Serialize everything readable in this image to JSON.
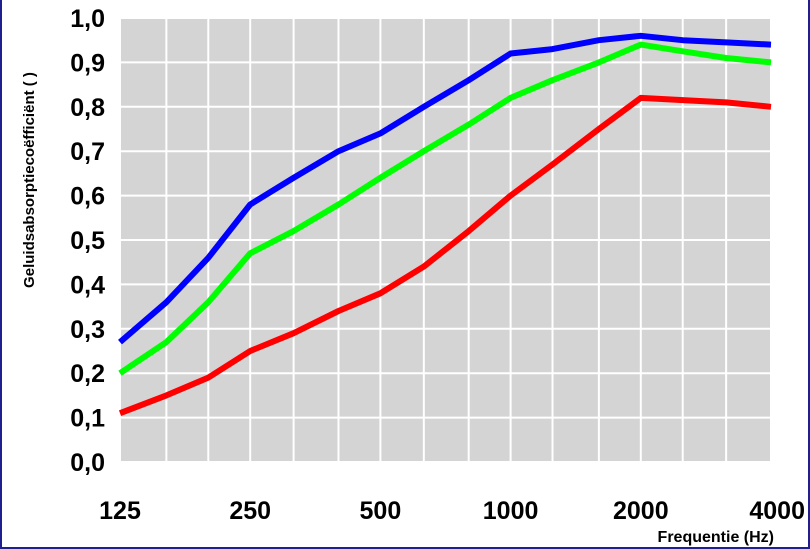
{
  "chart_data": {
    "type": "line",
    "title": "",
    "xlabel": "Frequentie (Hz)",
    "ylabel": "Geluidsabsorptiecoëfficiënt ( )",
    "x": [
      125,
      160,
      200,
      250,
      315,
      400,
      500,
      630,
      800,
      1000,
      1250,
      1600,
      2000,
      2500,
      3150,
      4000
    ],
    "x_tick_values": [
      125,
      250,
      500,
      1000,
      2000,
      4000
    ],
    "x_tick_labels": [
      "125",
      "250",
      "500",
      "1000",
      "2000",
      "4000"
    ],
    "xscale": "log",
    "xlim": [
      125,
      4000
    ],
    "ylim": [
      0,
      1.0
    ],
    "y_tick_values": [
      0,
      0.1,
      0.2,
      0.3,
      0.4,
      0.5,
      0.6,
      0.7,
      0.8,
      0.9,
      1.0
    ],
    "y_tick_labels": [
      "0,0",
      "0,1",
      "0,2",
      "0,3",
      "0,4",
      "0,5",
      "0,6",
      "0,7",
      "0,8",
      "0,9",
      "1,0"
    ],
    "grid": true,
    "plot_background": "#d4d4d4",
    "grid_color": "#ffffff",
    "series": [
      {
        "color": "#0000ff",
        "values": [
          0.27,
          0.36,
          0.46,
          0.58,
          0.64,
          0.7,
          0.74,
          0.8,
          0.86,
          0.92,
          0.93,
          0.95,
          0.96,
          0.95,
          0.945,
          0.94
        ]
      },
      {
        "color": "#00ff00",
        "values": [
          0.2,
          0.27,
          0.36,
          0.47,
          0.52,
          0.58,
          0.64,
          0.7,
          0.76,
          0.82,
          0.86,
          0.9,
          0.94,
          0.925,
          0.91,
          0.9
        ]
      },
      {
        "color": "#ff0000",
        "values": [
          0.11,
          0.15,
          0.19,
          0.25,
          0.29,
          0.34,
          0.38,
          0.44,
          0.52,
          0.6,
          0.67,
          0.75,
          0.82,
          0.815,
          0.81,
          0.8
        ]
      }
    ]
  }
}
